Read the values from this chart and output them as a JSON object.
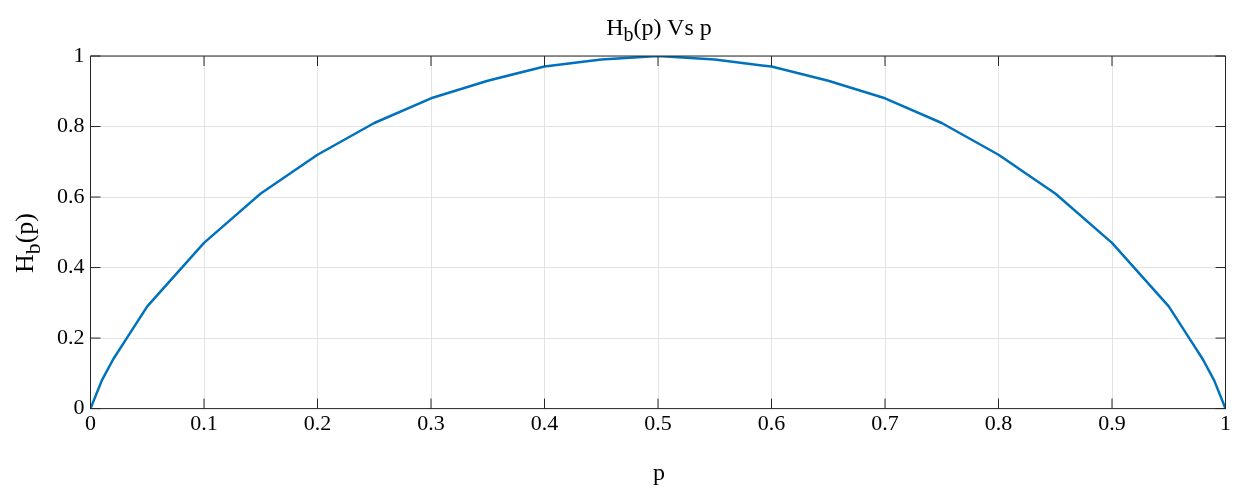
{
  "chart_data": {
    "type": "line",
    "title": "H$_{b}$(p) Vs p",
    "xlabel": "p",
    "ylabel": "H$_{b}$(p)",
    "x": [
      0,
      0.01,
      0.02,
      0.03,
      0.05,
      0.075,
      0.1,
      0.15,
      0.2,
      0.25,
      0.3,
      0.35,
      0.4,
      0.45,
      0.5,
      0.55,
      0.6,
      0.65,
      0.7,
      0.75,
      0.8,
      0.85,
      0.9,
      0.925,
      0.95,
      0.97,
      0.98,
      0.99,
      1
    ],
    "series": [
      {
        "color": "#0072bd",
        "values": [
          0,
          0.08,
          0.14,
          0.19,
          0.29,
          0.38,
          0.47,
          0.61,
          0.72,
          0.81,
          0.88,
          0.93,
          0.97,
          0.99,
          1,
          0.99,
          0.97,
          0.93,
          0.88,
          0.81,
          0.72,
          0.61,
          0.47,
          0.38,
          0.29,
          0.19,
          0.14,
          0.08,
          0
        ]
      }
    ],
    "xlim": [
      0,
      1
    ],
    "xticks": [
      0,
      0.1,
      0.2,
      0.3,
      0.4,
      0.5,
      0.6,
      0.7,
      0.8,
      0.9,
      1
    ],
    "ylim": [
      0,
      1
    ],
    "yticks": [
      0,
      0.2,
      0.4,
      0.6,
      0.8,
      1
    ],
    "grid": true,
    "legend": false,
    "marker": "none",
    "line_style": "solid"
  }
}
